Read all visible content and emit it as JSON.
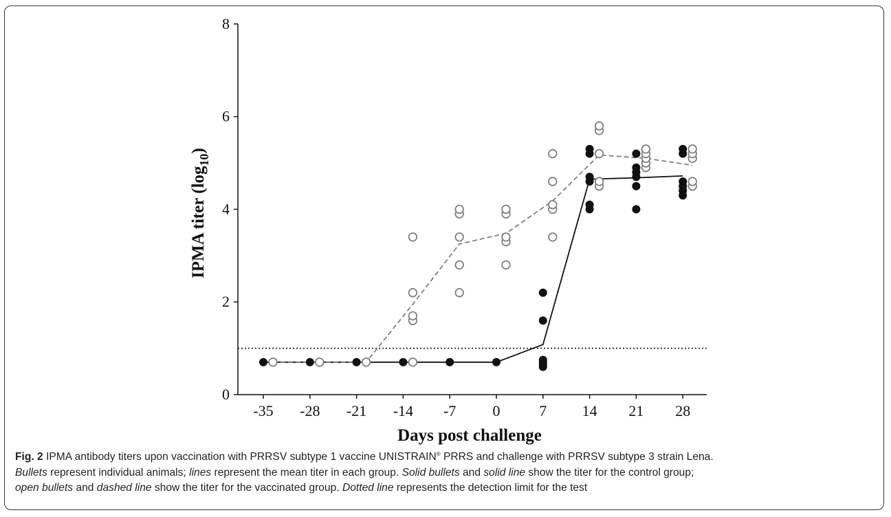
{
  "chart_data": {
    "type": "scatter",
    "xlabel": "Days post challenge",
    "ylabel_main": "IPMA titer (log",
    "ylabel_sub": "10",
    "ylabel_close": ")",
    "x": [
      -35,
      -28,
      -21,
      -14,
      -7,
      0,
      7,
      14,
      21,
      28
    ],
    "x_tick_labels": [
      "-35",
      "-28",
      "-21",
      "-14",
      "-7",
      "0",
      "7",
      "14",
      "21",
      "28"
    ],
    "y_ticks": [
      0,
      2,
      4,
      6,
      8
    ],
    "y_tick_labels": [
      "0",
      "2",
      "4",
      "6",
      "8"
    ],
    "ylim": [
      0,
      8
    ],
    "detection_limit": 1,
    "series": [
      {
        "style": "solid-bullets-solid-line",
        "color": "#111111",
        "offset": -1.2,
        "points": [
          [
            0.7
          ],
          [
            0.7
          ],
          [
            0.7
          ],
          [
            0.7
          ],
          [
            0.7
          ],
          [
            0.7
          ],
          [
            0.6,
            0.65,
            0.7,
            0.75,
            1.6,
            2.2
          ],
          [
            4.0,
            4.1,
            4.6,
            4.7,
            5.2,
            5.3
          ],
          [
            4.0,
            4.5,
            4.7,
            4.8,
            4.9,
            5.2
          ],
          [
            4.3,
            4.4,
            4.5,
            4.6,
            5.2,
            5.3
          ]
        ],
        "mean": [
          0.7,
          0.7,
          0.7,
          0.7,
          0.7,
          0.7,
          1.08,
          4.65,
          4.68,
          4.72
        ]
      },
      {
        "style": "open-bullets-dashed-line",
        "color": "#808080",
        "offset": 1.2,
        "points": [
          [
            0.7
          ],
          [
            0.7
          ],
          [
            0.7
          ],
          [
            0.7,
            1.6,
            1.7,
            2.2,
            3.4
          ],
          [
            2.2,
            2.8,
            3.4,
            3.9,
            4.0
          ],
          [
            2.8,
            3.3,
            3.4,
            3.9,
            4.0
          ],
          [
            3.4,
            4.0,
            4.1,
            4.6,
            5.2
          ],
          [
            4.5,
            4.6,
            5.2,
            5.7,
            5.8
          ],
          [
            4.9,
            5.0,
            5.1,
            5.2,
            5.3
          ],
          [
            4.5,
            4.6,
            5.1,
            5.2,
            5.3
          ]
        ],
        "mean": [
          0.7,
          0.7,
          0.7,
          1.95,
          3.25,
          3.48,
          4.18,
          5.17,
          5.1,
          4.95
        ]
      }
    ]
  },
  "caption": {
    "fig_label": "Fig. 2",
    "text_1": " IPMA antibody titers upon vaccination with PRRSV subtype 1 vaccine UNISTRAIN",
    "reg_mark": "®",
    "text_2": " PRRS and challenge with PRRSV subtype 3 strain Lena.",
    "bullets": "Bullets",
    "text_3": " represent individual animals; ",
    "lines": "lines",
    "text_4": " represent the mean titer in each group. ",
    "solid_bullets": "Solid bullets",
    "text_5": " and ",
    "solid_line": "solid line",
    "text_6": " show the titer for the control group;",
    "open_bullets": "open bullets",
    "text_7": " and ",
    "dashed_line": "dashed line",
    "text_8": " show the titer for the vaccinated group. ",
    "dotted_line": "Dotted line",
    "text_9": " represents the detection limit for the test"
  }
}
